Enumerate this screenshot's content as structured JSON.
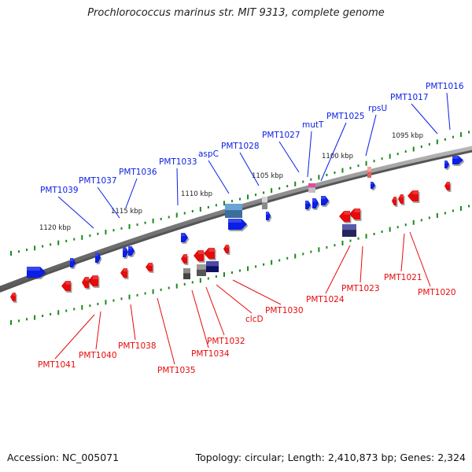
{
  "title": "Prochlorococcus marinus str. MIT 9313, complete genome",
  "footer": {
    "accession": "Accession: NC_005071",
    "summary": "Topology: circular; Length: 2,410,873 bp; Genes: 2,324"
  },
  "colors": {
    "forward": "#0a1ee6",
    "reverse": "#e60a0a",
    "backbone": "#808080",
    "tick": "#1a8a1a"
  },
  "scale_ticks": [
    "1095 kbp",
    "1100 kbp",
    "1105 kbp",
    "1110 kbp",
    "1115 kbp",
    "1120 kbp"
  ],
  "forward_labels": [
    "PMT1016",
    "PMT1017",
    "rpsU",
    "PMT1025",
    "mutT",
    "PMT1027",
    "PMT1028",
    "aspC",
    "PMT1033",
    "PMT1036",
    "PMT1037",
    "PMT1039"
  ],
  "reverse_labels": [
    "PMT1020",
    "PMT1021",
    "PMT1023",
    "PMT1024",
    "PMT1030",
    "clcD",
    "PMT1032",
    "PMT1034",
    "PMT1035",
    "PMT1038",
    "PMT1040",
    "PMT1041"
  ]
}
